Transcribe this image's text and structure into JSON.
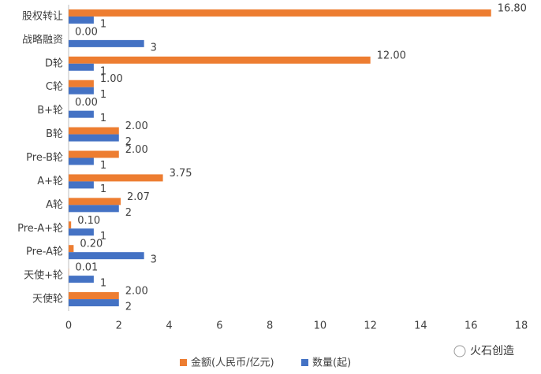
{
  "chart_data": {
    "type": "hbar",
    "categories": [
      "股权转让",
      "战略融资",
      "D轮",
      "C轮",
      "B+轮",
      "B轮",
      "Pre-B轮",
      "A+轮",
      "A轮",
      "Pre-A+轮",
      "Pre-A轮",
      "天使+轮",
      "天使轮"
    ],
    "series": [
      {
        "name": "金额(人民币/亿元)",
        "color": "#ed7d31",
        "values": [
          16.8,
          0,
          12,
          1,
          0,
          2,
          2,
          3.75,
          2.07,
          0.1,
          0.2,
          0.01,
          2
        ],
        "value_labels": [
          "16.80",
          "0.00",
          "12.00",
          "1.00",
          "0.00",
          "2.00",
          "2.00",
          "3.75",
          "2.07",
          "0.10",
          "0.20",
          "0.01",
          "2.00"
        ]
      },
      {
        "name": "数量(起)",
        "color": "#4472c4",
        "values": [
          1,
          3,
          1,
          1,
          1,
          2,
          1,
          1,
          2,
          1,
          3,
          1,
          2
        ]
      }
    ],
    "xlim": [
      0,
      18
    ],
    "xticks": [
      0,
      2,
      4,
      6,
      8,
      10,
      12,
      14,
      16,
      18
    ],
    "grid": false,
    "legend": "bottom",
    "logo": "火石创造"
  }
}
